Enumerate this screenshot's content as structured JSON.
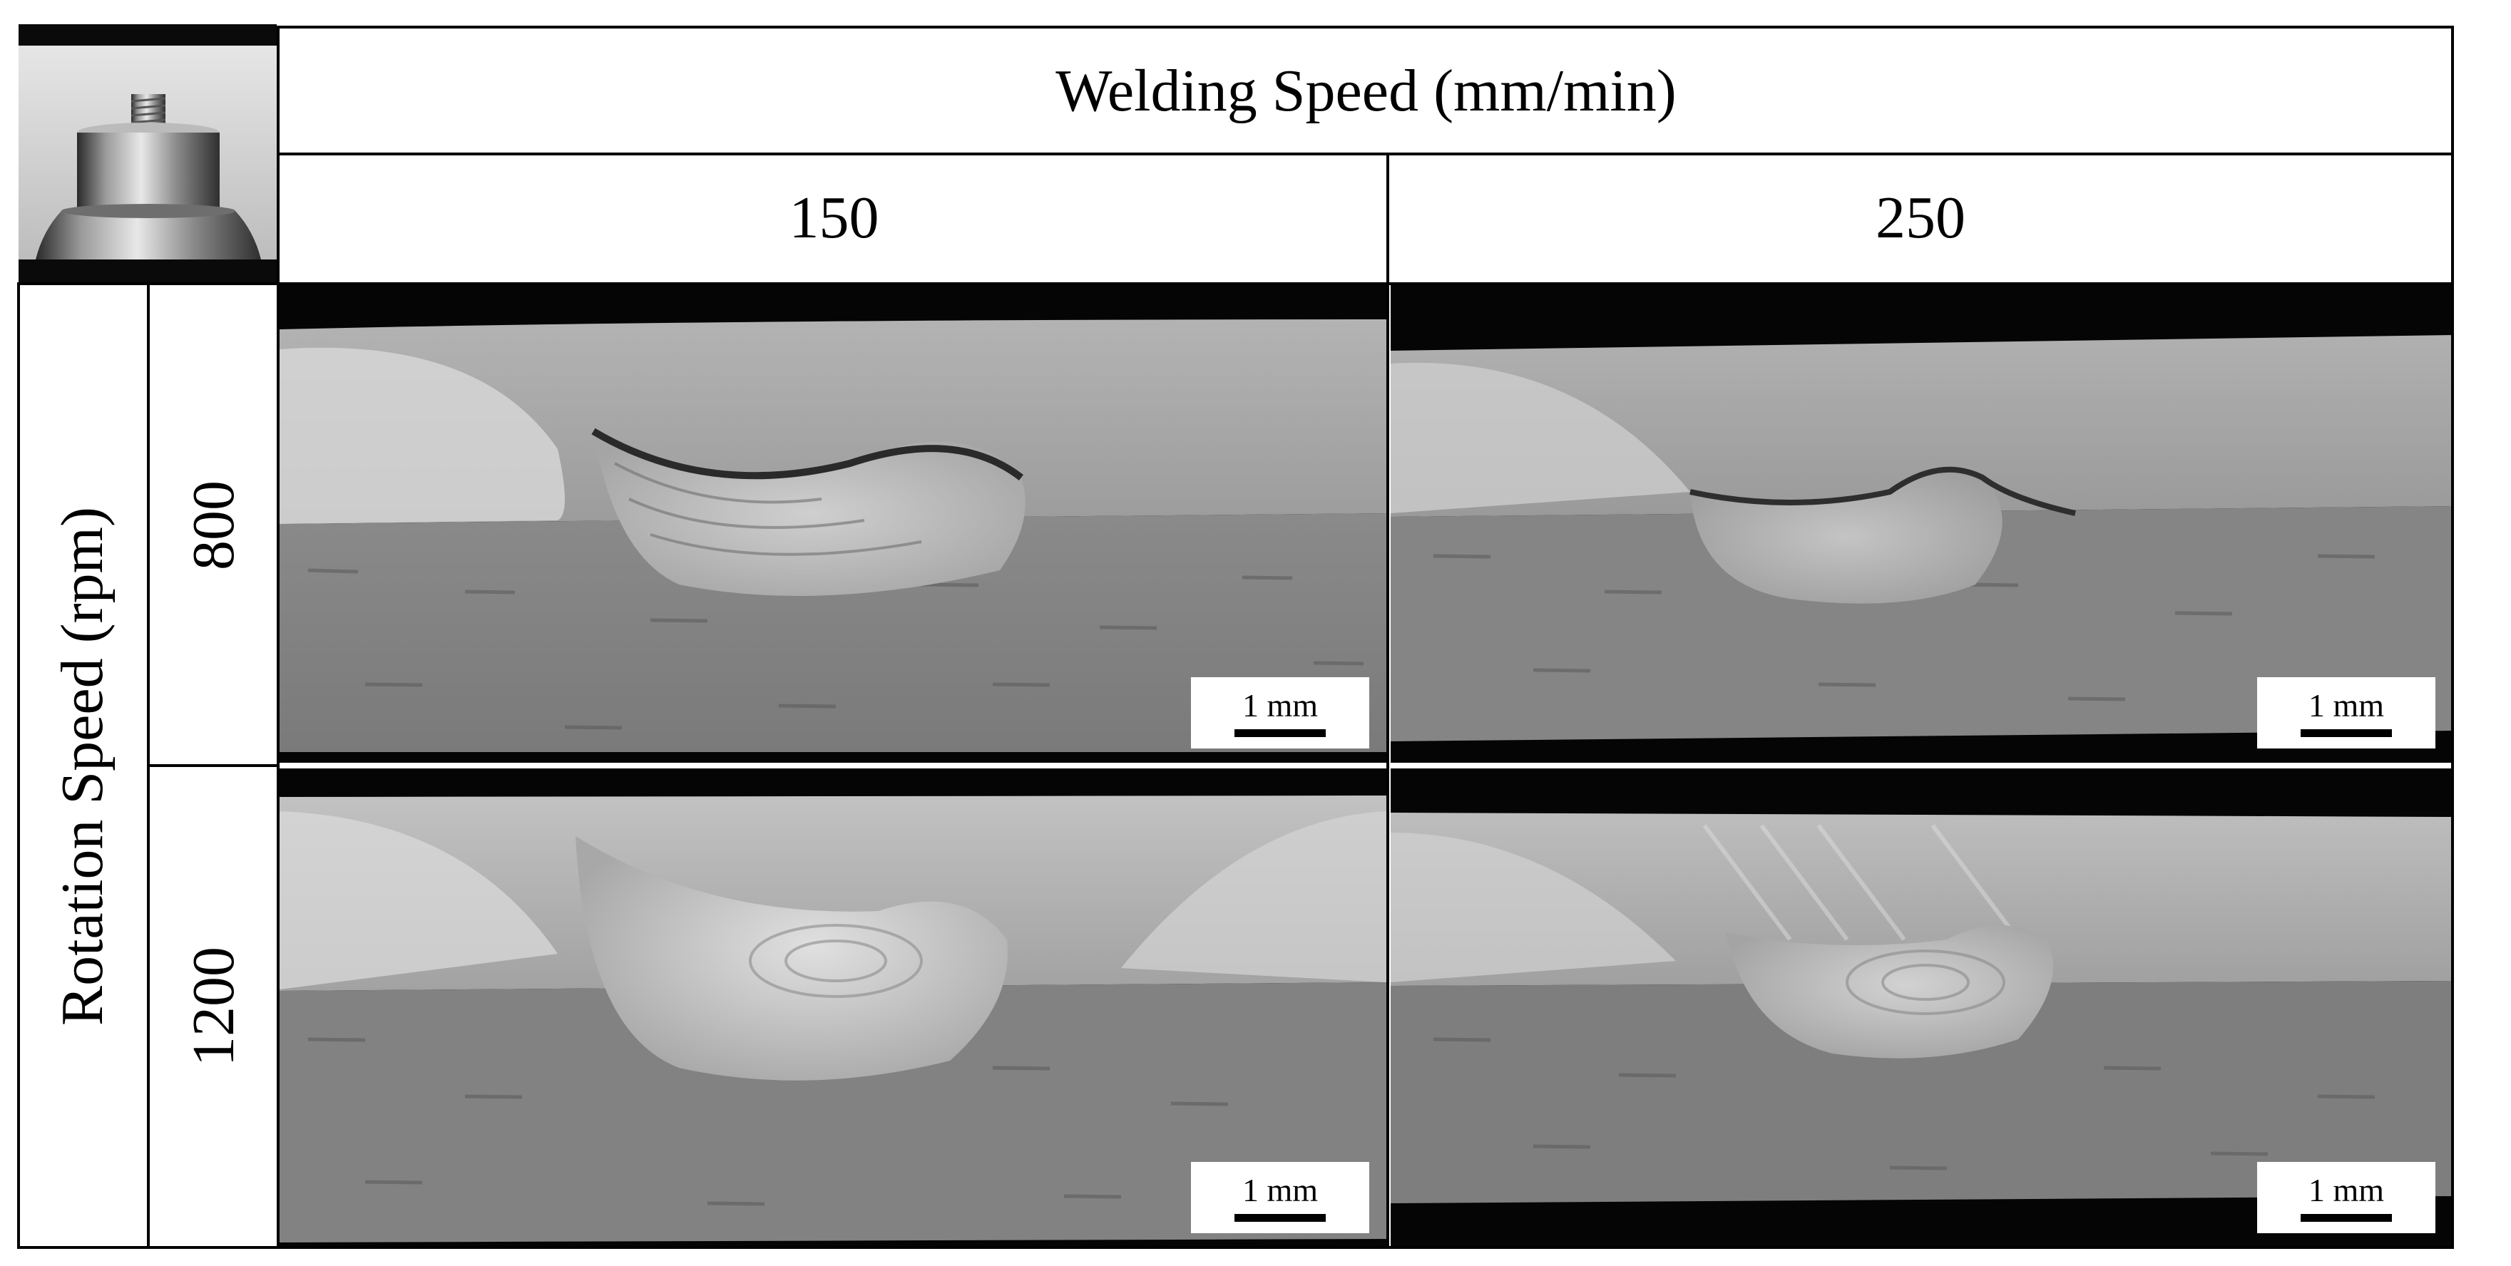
{
  "header": {
    "title": "Welding Speed (mm/min)"
  },
  "columns": [
    {
      "label": "150"
    },
    {
      "label": "250"
    }
  ],
  "row_axis": {
    "label": "Rotation  Speed (rpm)"
  },
  "rows": [
    {
      "label": "800"
    },
    {
      "label": "1200"
    }
  ],
  "panels": [
    {
      "scale_label": "1 mm"
    },
    {
      "scale_label": "1 mm"
    },
    {
      "scale_label": "1 mm"
    },
    {
      "scale_label": "1 mm"
    }
  ],
  "colors": {
    "grid_line": "#000000",
    "background": "#ffffff",
    "panel_black": "#050505"
  },
  "icons": {
    "tool": "friction-stir-welding-tool-photo"
  }
}
